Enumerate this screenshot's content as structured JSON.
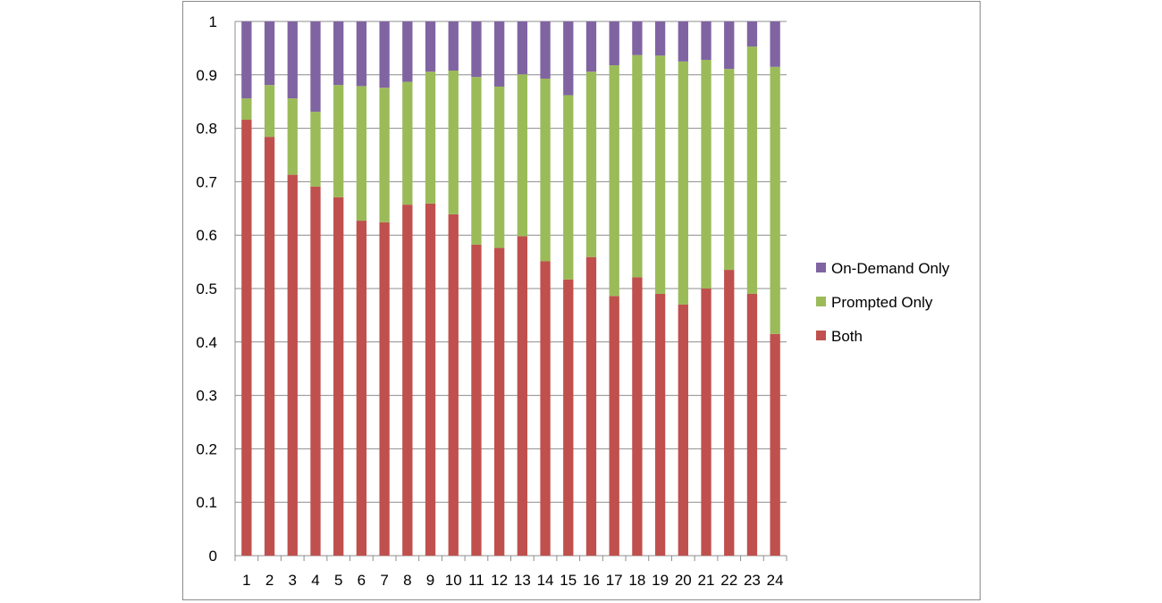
{
  "chart_data": {
    "type": "bar",
    "stacked": true,
    "categories": [
      "1",
      "2",
      "3",
      "4",
      "5",
      "6",
      "7",
      "8",
      "9",
      "10",
      "11",
      "12",
      "13",
      "14",
      "15",
      "16",
      "17",
      "18",
      "19",
      "20",
      "21",
      "22",
      "23",
      "24"
    ],
    "series": [
      {
        "name": "Both",
        "color": "#c0504d",
        "values": [
          0.816,
          0.784,
          0.713,
          0.691,
          0.671,
          0.627,
          0.624,
          0.657,
          0.659,
          0.639,
          0.582,
          0.576,
          0.598,
          0.551,
          0.517,
          0.559,
          0.486,
          0.521,
          0.49,
          0.47,
          0.5,
          0.535,
          0.49,
          0.415
        ]
      },
      {
        "name": "Prompted Only",
        "color": "#9bbb59",
        "values": [
          0.04,
          0.097,
          0.143,
          0.14,
          0.21,
          0.252,
          0.252,
          0.23,
          0.247,
          0.269,
          0.314,
          0.302,
          0.303,
          0.342,
          0.345,
          0.347,
          0.432,
          0.416,
          0.446,
          0.455,
          0.428,
          0.376,
          0.463,
          0.5
        ]
      },
      {
        "name": "On-Demand Only",
        "color": "#8064a2",
        "values": [
          0.144,
          0.119,
          0.144,
          0.169,
          0.119,
          0.121,
          0.124,
          0.113,
          0.094,
          0.092,
          0.104,
          0.122,
          0.099,
          0.107,
          0.138,
          0.094,
          0.082,
          0.063,
          0.064,
          0.075,
          0.072,
          0.089,
          0.047,
          0.085
        ]
      }
    ],
    "yticks": [
      "0",
      "0.1",
      "0.2",
      "0.3",
      "0.4",
      "0.5",
      "0.6",
      "0.7",
      "0.8",
      "0.9",
      "1"
    ],
    "ylim": [
      0,
      1
    ],
    "grid": true,
    "legend_position": "right",
    "legend_order": [
      "On-Demand Only",
      "Prompted Only",
      "Both"
    ]
  }
}
